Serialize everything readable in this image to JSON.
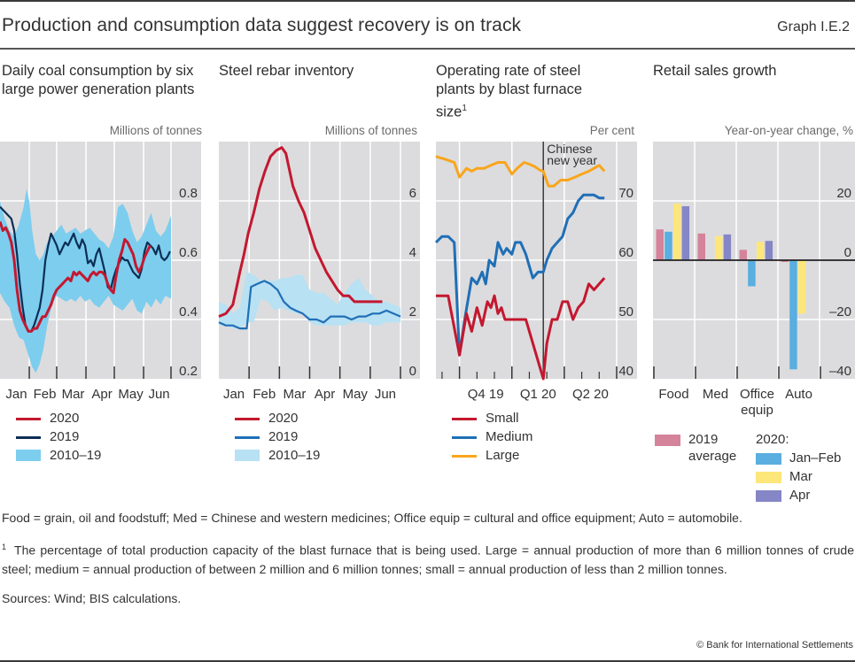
{
  "header": {
    "title": "Production and consumption data suggest recovery is on track",
    "graph_id": "Graph I.E.2"
  },
  "colors": {
    "plot_bg": "#dcdcde",
    "grid": "#ffffff",
    "red": "#c3182f",
    "navy": "#0b2e55",
    "blue": "#1f6fb6",
    "range_light": "#b8e1f3",
    "range_bright": "#7dcdee",
    "orange": "#f9a51c",
    "bar_pink": "#d4839a",
    "bar_blue": "#5aaee0",
    "bar_yellow": "#fde67a",
    "bar_purple": "#8586c6"
  },
  "chart_data": [
    {
      "id": "coal",
      "type": "line",
      "title": "Daily coal consumption by six large power generation plants",
      "unit_label": "Millions of tonnes",
      "xlabel": "",
      "ylabel": "Millions of tonnes",
      "x_unit": "day of year",
      "xlim": [
        0,
        181
      ],
      "ylim": [
        0.2,
        1.0
      ],
      "yticks": [
        0.2,
        0.4,
        0.6,
        0.8
      ],
      "ytick_labels": [
        "0.2",
        "0.4",
        "0.6",
        "0.8"
      ],
      "xtick_positions": [
        31,
        60,
        91,
        121,
        152,
        181
      ],
      "xtick_labels": [
        "Jan",
        "Feb",
        "Mar",
        "Apr",
        "May",
        "Jun"
      ],
      "grid": true,
      "legend_position": "below",
      "range": {
        "name": "2010–19",
        "x": [
          0,
          5,
          10,
          15,
          20,
          25,
          28,
          31,
          34,
          38,
          42,
          46,
          50,
          55,
          60,
          65,
          70,
          75,
          80,
          85,
          90,
          95,
          100,
          105,
          110,
          115,
          120,
          125,
          130,
          135,
          140,
          145,
          150,
          155,
          160,
          165,
          170,
          175,
          181
        ],
        "low": [
          0.49,
          0.46,
          0.44,
          0.38,
          0.34,
          0.33,
          0.3,
          0.27,
          0.24,
          0.22,
          0.25,
          0.3,
          0.38,
          0.45,
          0.48,
          0.47,
          0.46,
          0.47,
          0.46,
          0.48,
          0.46,
          0.47,
          0.45,
          0.44,
          0.46,
          0.48,
          0.45,
          0.44,
          0.43,
          0.45,
          0.47,
          0.43,
          0.42,
          0.46,
          0.44,
          0.47,
          0.45,
          0.48,
          0.47
        ],
        "high": [
          0.8,
          0.74,
          0.7,
          0.68,
          0.72,
          0.78,
          0.84,
          0.8,
          0.7,
          0.62,
          0.6,
          0.62,
          0.66,
          0.68,
          0.7,
          0.72,
          0.69,
          0.7,
          0.71,
          0.69,
          0.7,
          0.71,
          0.69,
          0.67,
          0.66,
          0.64,
          0.68,
          0.78,
          0.79,
          0.76,
          0.7,
          0.66,
          0.68,
          0.72,
          0.76,
          0.7,
          0.68,
          0.7,
          0.75
        ]
      },
      "series": [
        {
          "name": "2020",
          "x": [
            0,
            3,
            6,
            9,
            12,
            15,
            18,
            21,
            24,
            27,
            30,
            33,
            36,
            39,
            42,
            45,
            48,
            51,
            54,
            57,
            60,
            63,
            66,
            69,
            72,
            75,
            78,
            81,
            84,
            87,
            90,
            93,
            96,
            99,
            102,
            105,
            108,
            111,
            114,
            117,
            120,
            123,
            126,
            129,
            132,
            135,
            138,
            141,
            144,
            147,
            150,
            153,
            156,
            159
          ],
          "values": [
            0.73,
            0.7,
            0.71,
            0.69,
            0.66,
            0.6,
            0.5,
            0.43,
            0.4,
            0.38,
            0.36,
            0.36,
            0.37,
            0.37,
            0.39,
            0.41,
            0.41,
            0.43,
            0.45,
            0.48,
            0.5,
            0.51,
            0.52,
            0.53,
            0.54,
            0.53,
            0.56,
            0.55,
            0.56,
            0.55,
            0.54,
            0.53,
            0.55,
            0.56,
            0.55,
            0.56,
            0.56,
            0.55,
            0.52,
            0.5,
            0.49,
            0.55,
            0.6,
            0.63,
            0.67,
            0.66,
            0.64,
            0.62,
            0.58,
            0.56,
            0.58,
            0.61,
            0.63,
            0.65
          ]
        },
        {
          "name": "2019",
          "x": [
            0,
            3,
            6,
            9,
            12,
            15,
            18,
            21,
            24,
            27,
            30,
            33,
            36,
            39,
            42,
            45,
            48,
            51,
            54,
            57,
            60,
            63,
            66,
            69,
            72,
            75,
            78,
            81,
            84,
            87,
            90,
            93,
            96,
            99,
            102,
            105,
            108,
            111,
            114,
            117,
            120,
            123,
            126,
            129,
            132,
            135,
            138,
            141,
            144,
            147,
            150,
            153,
            156,
            159,
            162,
            165,
            168,
            171,
            174,
            177,
            180
          ],
          "values": [
            0.78,
            0.77,
            0.76,
            0.75,
            0.74,
            0.7,
            0.62,
            0.52,
            0.44,
            0.38,
            0.36,
            0.36,
            0.38,
            0.41,
            0.44,
            0.5,
            0.6,
            0.65,
            0.69,
            0.67,
            0.65,
            0.62,
            0.64,
            0.66,
            0.65,
            0.67,
            0.69,
            0.66,
            0.64,
            0.67,
            0.65,
            0.59,
            0.6,
            0.58,
            0.62,
            0.64,
            0.6,
            0.56,
            0.51,
            0.5,
            0.54,
            0.57,
            0.59,
            0.61,
            0.6,
            0.6,
            0.58,
            0.56,
            0.55,
            0.54,
            0.57,
            0.63,
            0.66,
            0.65,
            0.64,
            0.62,
            0.65,
            0.61,
            0.6,
            0.61,
            0.63
          ]
        }
      ],
      "legend": [
        "2020",
        "2019",
        "2010–19"
      ]
    },
    {
      "id": "rebar",
      "type": "line",
      "title": "Steel rebar inventory",
      "unit_label": "Millions of tonnes",
      "xlabel": "",
      "ylabel": "Millions of tonnes",
      "x_unit": "week",
      "xlim": [
        0,
        26
      ],
      "ylim": [
        0,
        8
      ],
      "yticks": [
        0,
        2,
        4,
        6
      ],
      "ytick_labels": [
        "0",
        "2",
        "4",
        "6"
      ],
      "xtick_positions": [
        4.33,
        8.67,
        13,
        17.33,
        21.67,
        26
      ],
      "xtick_labels": [
        "Jan",
        "Feb",
        "Mar",
        "Apr",
        "May",
        "Jun"
      ],
      "grid": true,
      "legend_position": "below",
      "range": {
        "name": "2010–19",
        "x": [
          0,
          1,
          2,
          3,
          4,
          5,
          6,
          7,
          8,
          9,
          10,
          11,
          12,
          13,
          14,
          15,
          16,
          17,
          18,
          19,
          20,
          21,
          22,
          23,
          24,
          25,
          26
        ],
        "low": [
          1.8,
          1.8,
          1.7,
          1.7,
          1.9,
          1.9,
          2.7,
          2.6,
          2.3,
          2.4,
          2.3,
          2.2,
          2.2,
          1.9,
          1.8,
          1.8,
          1.8,
          1.8,
          1.8,
          1.9,
          1.9,
          1.9,
          1.8,
          1.8,
          1.9,
          1.9,
          1.9
        ],
        "high": [
          2.6,
          2.5,
          2.2,
          2.4,
          3.6,
          3.5,
          3.3,
          3.3,
          3.3,
          3.4,
          3.4,
          3.5,
          3.5,
          3.0,
          2.9,
          2.9,
          2.7,
          2.5,
          2.9,
          3.2,
          3.4,
          3.0,
          2.8,
          2.6,
          2.6,
          2.5,
          2.4
        ]
      },
      "series": [
        {
          "name": "2020",
          "x": [
            0,
            1,
            2,
            3,
            3.6,
            4.2,
            5,
            5.8,
            6.6,
            7.4,
            8.2,
            9,
            9.6,
            10.6,
            11.4,
            12.2,
            13,
            13.8,
            14.6,
            15.4,
            16.2,
            17,
            17.8,
            18.6,
            19.4,
            20.2,
            21,
            21.8,
            22.6,
            23.4
          ],
          "values": [
            2.1,
            2.2,
            2.5,
            3.6,
            4.2,
            4.9,
            5.6,
            6.4,
            7.0,
            7.5,
            7.7,
            7.8,
            7.6,
            6.5,
            6.0,
            5.6,
            5.0,
            4.4,
            4.0,
            3.6,
            3.3,
            3.0,
            2.8,
            2.8,
            2.6,
            2.6,
            2.6,
            2.6,
            2.6,
            2.6
          ]
        },
        {
          "name": "2019",
          "x": [
            0,
            1,
            2,
            3,
            4,
            4.6,
            5.5,
            6.5,
            7.4,
            8.4,
            9.3,
            10.2,
            11,
            12,
            13,
            14,
            15,
            16,
            17,
            18,
            19,
            20,
            21,
            22,
            23,
            24,
            25,
            26
          ],
          "values": [
            1.9,
            1.8,
            1.8,
            1.7,
            1.7,
            3.1,
            3.2,
            3.3,
            3.2,
            3.0,
            2.6,
            2.4,
            2.3,
            2.2,
            2.0,
            2.0,
            1.9,
            2.1,
            2.1,
            2.1,
            2.0,
            2.1,
            2.1,
            2.2,
            2.2,
            2.3,
            2.2,
            2.1
          ]
        }
      ],
      "legend": [
        "2020",
        "2019",
        "2010–19"
      ]
    },
    {
      "id": "blast",
      "type": "line",
      "title": "Operating rate of steel plants by blast furnace size",
      "title_footnote": "1",
      "unit_label": "Per cent",
      "xlabel": "",
      "ylabel": "Per cent",
      "x_unit": "month index (0 = start of Sep 2019)",
      "xlim": [
        -0.35,
        10.0
      ],
      "ylim": [
        40,
        80
      ],
      "yticks": [
        40,
        50,
        60,
        70
      ],
      "ytick_labels": [
        "40",
        "50",
        "60",
        "70"
      ],
      "major_ticks": [
        1,
        4,
        7,
        10
      ],
      "minor_ticks": [
        0,
        2,
        3,
        5,
        6,
        8,
        9
      ],
      "xtick_centers": [
        2.5,
        5.5,
        8.5
      ],
      "xtick_labels": [
        "Q4 19",
        "Q1 20",
        "Q2 20"
      ],
      "grid": true,
      "annotation": {
        "text_line1": "Chinese",
        "text_line2": "new year",
        "x": 5.8
      },
      "legend_position": "below",
      "series": [
        {
          "name": "Small",
          "x": [
            -0.35,
            0.35,
            1.0,
            1.4,
            1.7,
            2.0,
            2.3,
            2.6,
            2.8,
            3.0,
            3.2,
            3.4,
            3.6,
            3.9,
            4.2,
            4.5,
            4.8,
            5.1,
            5.4,
            5.8,
            6.0,
            6.3,
            6.6,
            6.9,
            7.2,
            7.5,
            7.8,
            8.1,
            8.4,
            8.7,
            9.0,
            9.3
          ],
          "values": [
            54,
            54,
            44,
            51,
            48,
            52,
            49,
            53,
            52,
            54,
            51,
            52,
            50,
            50,
            50,
            50,
            50,
            47,
            44,
            40,
            46,
            50,
            50,
            53,
            53,
            50,
            52,
            53,
            56,
            55,
            56,
            57
          ]
        },
        {
          "name": "Medium",
          "x": [
            -0.35,
            0.0,
            0.35,
            0.7,
            1.0,
            1.3,
            1.7,
            2.0,
            2.3,
            2.5,
            2.7,
            3.0,
            3.2,
            3.5,
            3.7,
            4.0,
            4.2,
            4.5,
            4.8,
            5.0,
            5.2,
            5.5,
            5.8,
            6.0,
            6.3,
            6.6,
            6.9,
            7.2,
            7.5,
            7.8,
            8.1,
            8.4,
            8.7,
            9.0,
            9.3
          ],
          "values": [
            63,
            64,
            64,
            63,
            44,
            50,
            57,
            56,
            58,
            56,
            60,
            59,
            63,
            61,
            62,
            61,
            63,
            63,
            61,
            59,
            57,
            58,
            58,
            60,
            62,
            63,
            64,
            67,
            68,
            70,
            71,
            71,
            71,
            70.5,
            70.5
          ]
        },
        {
          "name": "Large",
          "x": [
            -0.35,
            0.2,
            0.7,
            1.0,
            1.4,
            1.7,
            2.0,
            2.4,
            2.8,
            3.2,
            3.6,
            4.0,
            4.3,
            4.7,
            5.0,
            5.3,
            5.6,
            5.8,
            6.1,
            6.4,
            6.8,
            7.2,
            7.6,
            8.0,
            8.4,
            8.7,
            9.0,
            9.3
          ],
          "values": [
            77.5,
            77,
            76.5,
            74,
            75.5,
            75,
            75.5,
            75.5,
            76,
            76.5,
            76.5,
            74.5,
            75.5,
            76.5,
            76.2,
            75.8,
            75.2,
            75,
            72.5,
            72.5,
            73.5,
            73.5,
            74,
            74.5,
            75,
            75.5,
            76,
            75
          ]
        }
      ],
      "legend": [
        "Small",
        "Medium",
        "Large"
      ]
    },
    {
      "id": "retail",
      "type": "bar",
      "title": "Retail sales growth",
      "unit_label": "Year-on-year change, %",
      "xlabel": "",
      "ylabel": "Year-on-year change, %",
      "ylim": [
        -40,
        40
      ],
      "yticks": [
        -40,
        -20,
        0,
        20
      ],
      "ytick_labels": [
        "–40",
        "–20",
        "0",
        "20"
      ],
      "grid": true,
      "categories": [
        "Food",
        "Med",
        "Office equip",
        "Auto"
      ],
      "category_labels": [
        [
          "Food"
        ],
        [
          "Med"
        ],
        [
          "Office",
          "equip"
        ],
        [
          "Auto"
        ]
      ],
      "series": [
        {
          "name": "2019 average",
          "values": [
            10.4,
            9.0,
            3.5,
            -0.6
          ]
        },
        {
          "name": "Jan–Feb",
          "values": [
            9.6,
            0,
            -8.8,
            -36.8
          ]
        },
        {
          "name": "Mar",
          "values": [
            19.1,
            8.1,
            6.2,
            -18.0
          ]
        },
        {
          "name": "Apr",
          "values": [
            18.2,
            8.7,
            6.5,
            0
          ]
        }
      ],
      "legend": {
        "left_label_line1": "2019",
        "left_label_line2": "average",
        "group_heading": "2020:",
        "items": [
          "Jan–Feb",
          "Mar",
          "Apr"
        ]
      },
      "legend_position": "below"
    }
  ],
  "notes": {
    "abbreviations": "Food = grain, oil and foodstuff; Med = Chinese and western medicines; Office equip = cultural and office equipment; Auto = automobile.",
    "footnote_marker": "1",
    "footnote": "The percentage of total production capacity of the blast furnace that is being used. Large = annual production of more than 6 million tonnes of crude steel; medium = annual production of between 2 million and 6 million tonnes; small = annual production of less than 2 million tonnes.",
    "sources": "Sources: Wind; BIS calculations.",
    "copyright": "© Bank for International Settlements"
  }
}
